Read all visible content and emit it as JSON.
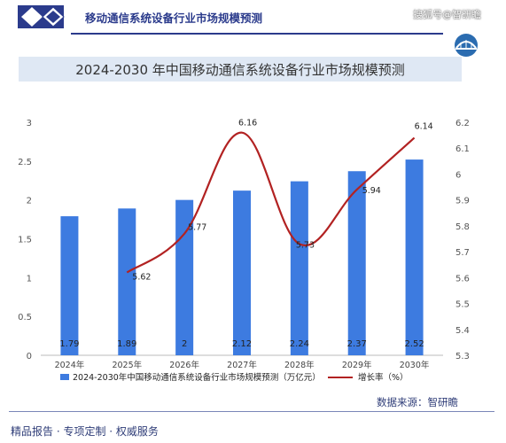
{
  "header": {
    "title": "移动通信系统设备行业市场规模预测",
    "watermark": "搜狐号@智研瞻",
    "accent_color": "#2b3b8c"
  },
  "chart_data": {
    "type": "bar",
    "title": "2024-2030 年中国移动通信系统设备行业市场规模预测",
    "categories": [
      "2024年",
      "2025年",
      "2026年",
      "2027年",
      "2028年",
      "2029年",
      "2030年"
    ],
    "series": [
      {
        "name": "2024-2030年中国移动通信系统设备行业市场规模预测（万亿元）",
        "type": "bar",
        "axis": "left",
        "color": "#3d7be0",
        "values": [
          1.79,
          1.89,
          2,
          2.12,
          2.24,
          2.37,
          2.52
        ],
        "labels": [
          "1.79",
          "1.89",
          "2",
          "2.12",
          "2.24",
          "2.37",
          "2.52"
        ]
      },
      {
        "name": "增长率（%）",
        "type": "line",
        "axis": "right",
        "color": "#b22222",
        "values": [
          null,
          5.62,
          5.77,
          6.16,
          5.73,
          5.94,
          6.14
        ],
        "labels": [
          "",
          "5.62",
          "5.77",
          "6.16",
          "5.73",
          "5.94",
          "6.14"
        ]
      }
    ],
    "y_left": {
      "min": 0,
      "max": 3,
      "ticks": [
        "0",
        "0.5",
        "1",
        "1.5",
        "2",
        "2.5",
        "3"
      ]
    },
    "y_right": {
      "min": 5.3,
      "max": 6.2,
      "ticks": [
        "5.3",
        "5.4",
        "5.5",
        "5.6",
        "5.7",
        "5.8",
        "5.9",
        "6",
        "6.1",
        "6.2"
      ]
    },
    "grid": false,
    "legend_position": "bottom"
  },
  "source": "数据来源：智研瞻",
  "footer": "精品报告 · 专项定制 · 权威服务"
}
